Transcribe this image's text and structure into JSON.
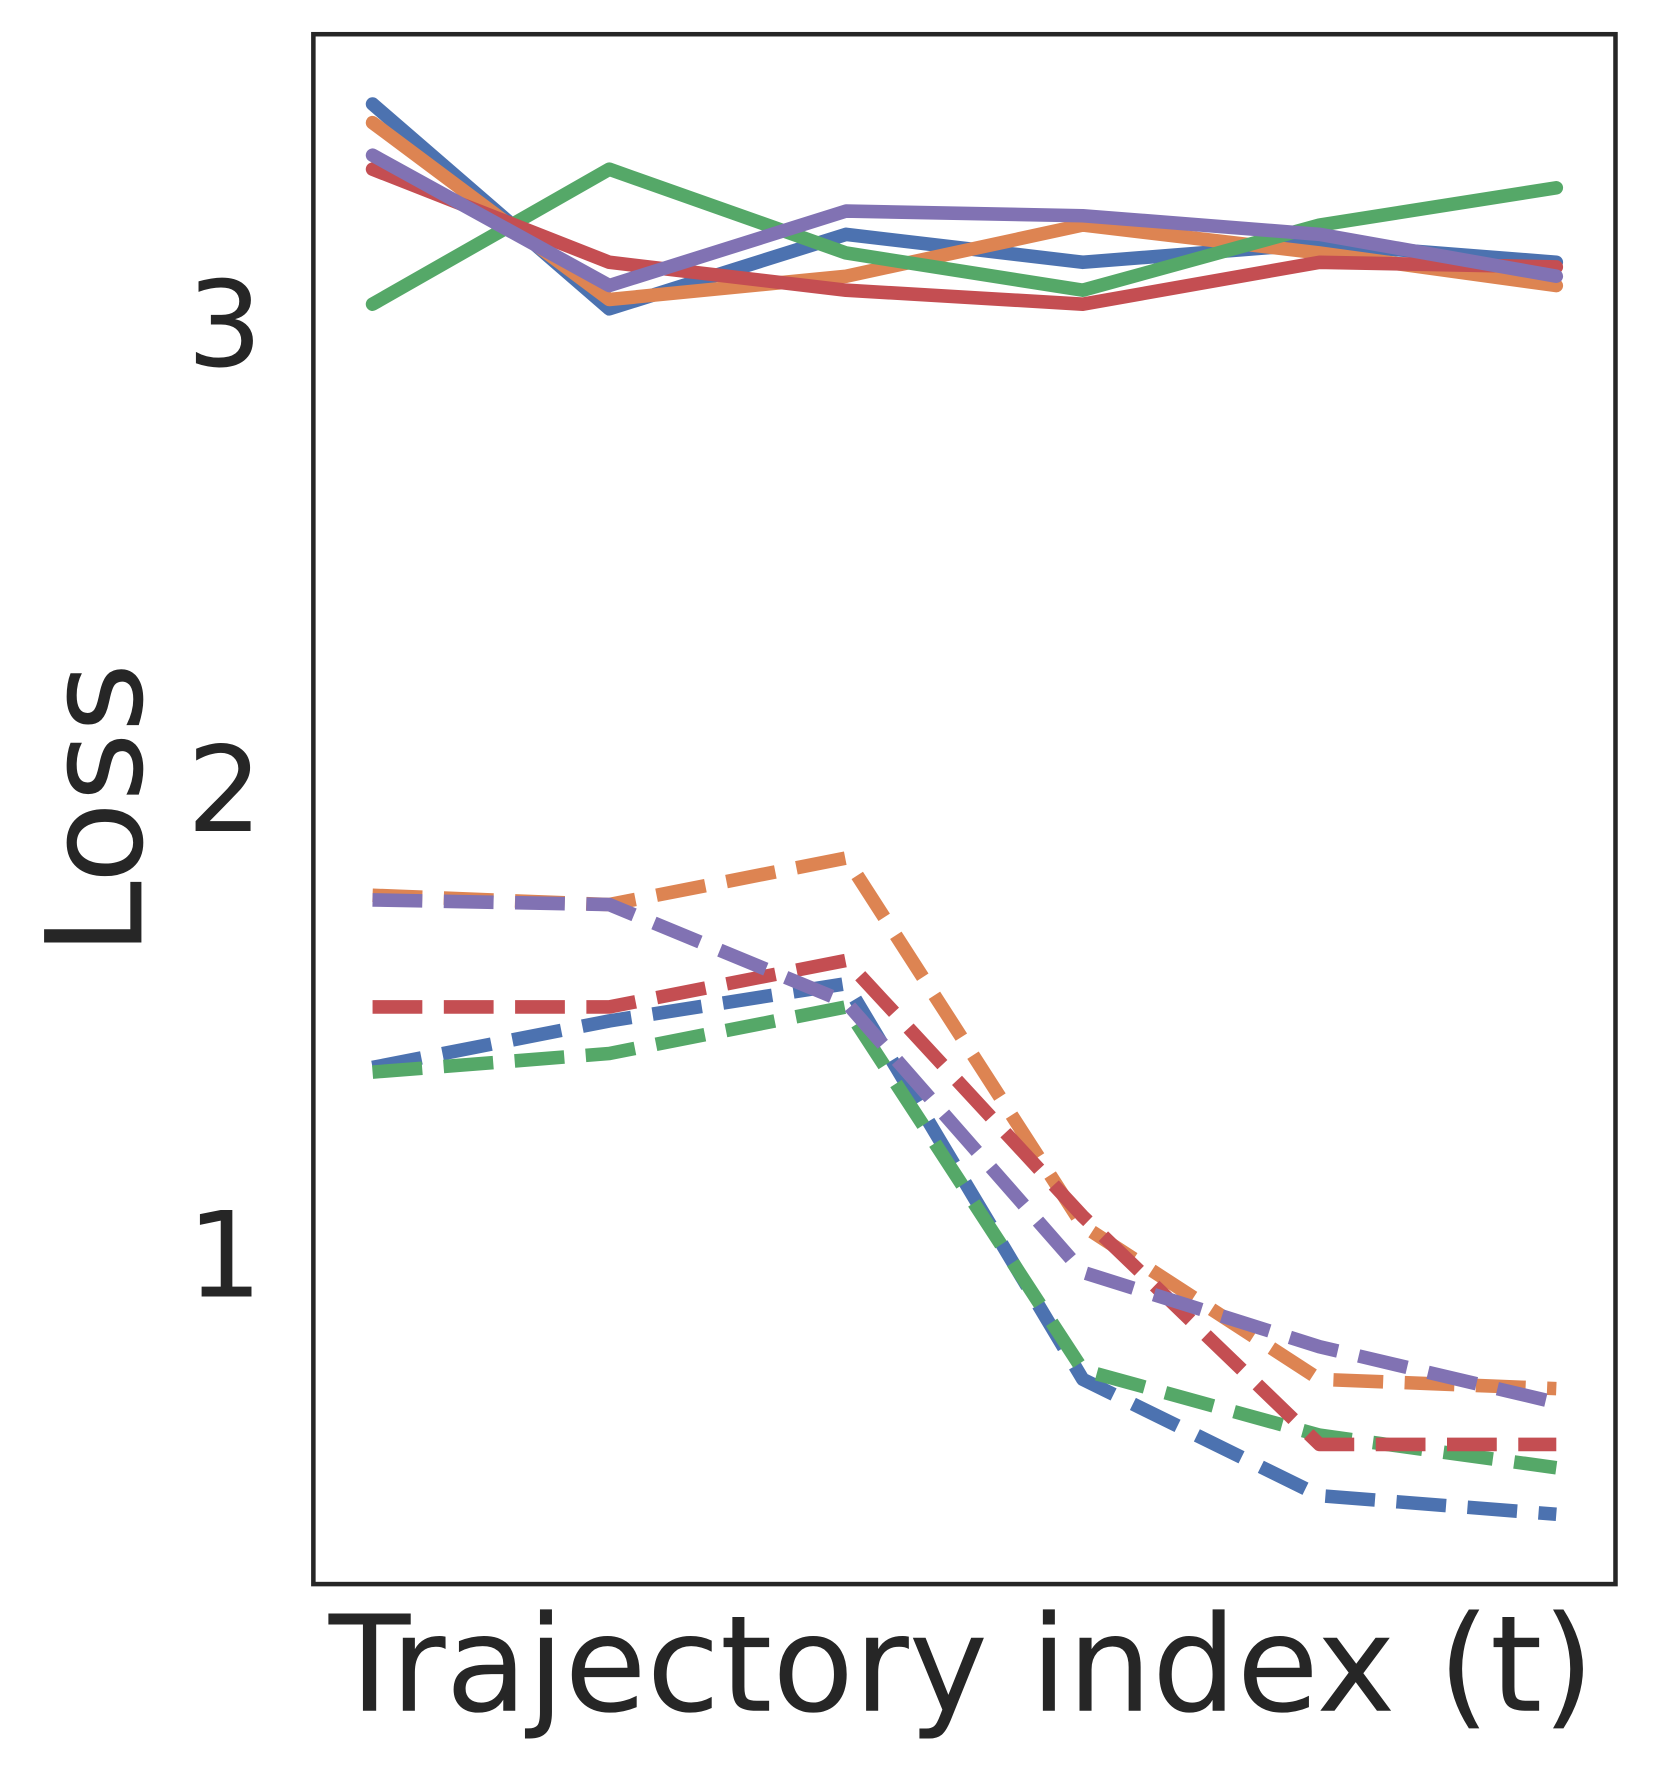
{
  "chart_data": {
    "type": "line",
    "title": "",
    "xlabel": "Trajectory index (t)",
    "ylabel": "Loss",
    "x": [
      0,
      1,
      2,
      3,
      4,
      5
    ],
    "xticks": [],
    "yticks": [
      1,
      2,
      3
    ],
    "ytick_labels": [
      "1",
      "2",
      "3"
    ],
    "xlim": [
      -0.25,
      5.25
    ],
    "ylim": [
      0.29,
      3.62
    ],
    "grid": false,
    "legend": null,
    "series": [
      {
        "name": "solid-blue",
        "style": "solid",
        "color": "#4c72b0",
        "values": [
          3.47,
          3.03,
          3.19,
          3.13,
          3.17,
          3.13
        ]
      },
      {
        "name": "solid-orange",
        "style": "solid",
        "color": "#dd8452",
        "values": [
          3.43,
          3.05,
          3.1,
          3.21,
          3.15,
          3.08
        ]
      },
      {
        "name": "solid-green",
        "style": "solid",
        "color": "#55a868",
        "values": [
          3.04,
          3.33,
          3.15,
          3.07,
          3.21,
          3.29
        ]
      },
      {
        "name": "solid-red",
        "style": "solid",
        "color": "#c44e52",
        "values": [
          3.33,
          3.13,
          3.07,
          3.04,
          3.13,
          3.12
        ]
      },
      {
        "name": "solid-purple",
        "style": "solid",
        "color": "#8172b3",
        "values": [
          3.36,
          3.08,
          3.24,
          3.23,
          3.19,
          3.1
        ]
      },
      {
        "name": "dashed-blue",
        "style": "dashed",
        "color": "#4c72b0",
        "values": [
          1.4,
          1.5,
          1.58,
          0.73,
          0.48,
          0.44
        ]
      },
      {
        "name": "dashed-orange",
        "style": "dashed",
        "color": "#dd8452",
        "values": [
          1.77,
          1.75,
          1.85,
          1.06,
          0.73,
          0.71
        ]
      },
      {
        "name": "dashed-green",
        "style": "dashed",
        "color": "#55a868",
        "values": [
          1.39,
          1.43,
          1.53,
          0.75,
          0.61,
          0.54
        ]
      },
      {
        "name": "dashed-red",
        "style": "dashed",
        "color": "#c44e52",
        "values": [
          1.53,
          1.53,
          1.63,
          1.08,
          0.59,
          0.59
        ]
      },
      {
        "name": "dashed-purple",
        "style": "dashed",
        "color": "#8172b3",
        "values": [
          1.76,
          1.75,
          1.54,
          0.96,
          0.8,
          0.68
        ]
      }
    ]
  }
}
